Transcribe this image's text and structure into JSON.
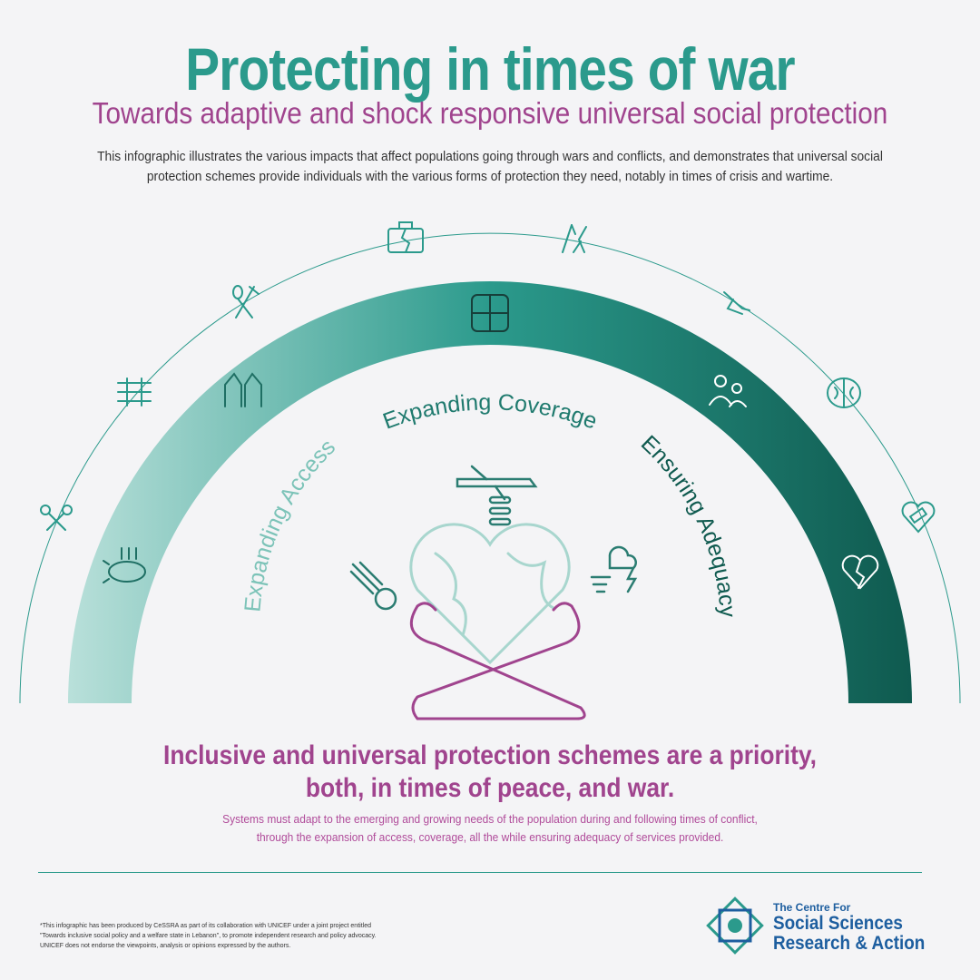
{
  "header": {
    "title": "Protecting in times of war",
    "subtitle": "Towards adaptive and shock responsive universal social protection",
    "intro_line1": "This infographic illustrates the various impacts that affect populations going through wars and conflicts, and demonstrates that universal social",
    "intro_line2": "protection schemes provide individuals with the various forms of protection they need, notably in times of crisis and wartime."
  },
  "arc_labels": {
    "access": "Expanding Access",
    "coverage": "Expanding Coverage",
    "adequacy": "Ensuring Adequacy"
  },
  "colors": {
    "teal": "#2b9a8c",
    "teal_dark": "#0f5a4f",
    "teal_light": "#b9e0da",
    "magenta": "#a0448e",
    "logo_blue": "#1d5e9f",
    "background": "#f4f4f6"
  },
  "icons": [
    "keys-icon",
    "bomb-icon",
    "barbed-wire-icon",
    "food-utensils-icon",
    "broken-briefcase-icon",
    "hands-reaching-icon",
    "joined-hands-icon",
    "pointing-hand-icon",
    "family-icon",
    "brain-icon",
    "heart-bandage-icon",
    "broken-heart-icon",
    "warplane-icon",
    "meteor-icon",
    "storm-icon",
    "globe-heart-icon",
    "hugging-arms-icon"
  ],
  "conclusion": {
    "headline_line1": "Inclusive and universal protection schemes are a priority,",
    "headline_line2": "both, in times of peace, and war.",
    "note_line1": "Systems must adapt to the emerging and growing needs of the population during and following times of conflict,",
    "note_line2": "through the expansion of access, coverage, all the while ensuring adequacy of services provided."
  },
  "footer": {
    "disclaimer_line1": "*This infographic has been produced by CeSSRA as part of its collaboration with UNICEF under a joint project entitled",
    "disclaimer_line2": "\"Towards inclusive social policy and a welfare state in Lebanon\", to promote independent research and policy advocacy.",
    "disclaimer_line3": "UNICEF does not endorse the viewpoints, analysis or opinions expressed by the authors.",
    "logo_line1": "The Centre For",
    "logo_line2": "Social Sciences",
    "logo_line3": "Research & Action"
  }
}
